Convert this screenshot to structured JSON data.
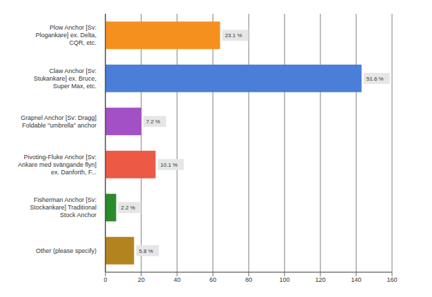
{
  "chart_data": {
    "type": "bar",
    "orientation": "horizontal",
    "categories": [
      "Plow Anchor [Sv: Plogankare] ex. Delta, CQR, etc.",
      "Claw Anchor [Sv: Stukankare] ex. Bruce, Super Max, etc.",
      "Grapnel Anchor [Sv: Dragg] Foldable \"umbrella\" anchor",
      "Pivoting-Fluke Anchor [Sv: Ankare med svängande flyn] ex. Danforth, F...",
      "Fisherman Anchor [Sv: Stockankare] Traditional Stock Anchor",
      "Other (please specify)"
    ],
    "values": [
      64,
      143,
      20,
      28,
      6,
      16
    ],
    "percent_labels": [
      "23.1 %",
      "51.6 %",
      "7.2 %",
      "10.1 %",
      "2.2 %",
      "5.8 %"
    ],
    "colors": [
      "#f5901e",
      "#4a7ed8",
      "#a34fc6",
      "#ec5944",
      "#2c8a2c",
      "#b3831f"
    ],
    "xlim": [
      0,
      160
    ],
    "xticks": [
      0,
      20,
      40,
      60,
      80,
      100,
      120,
      140,
      160
    ],
    "grid": true
  }
}
